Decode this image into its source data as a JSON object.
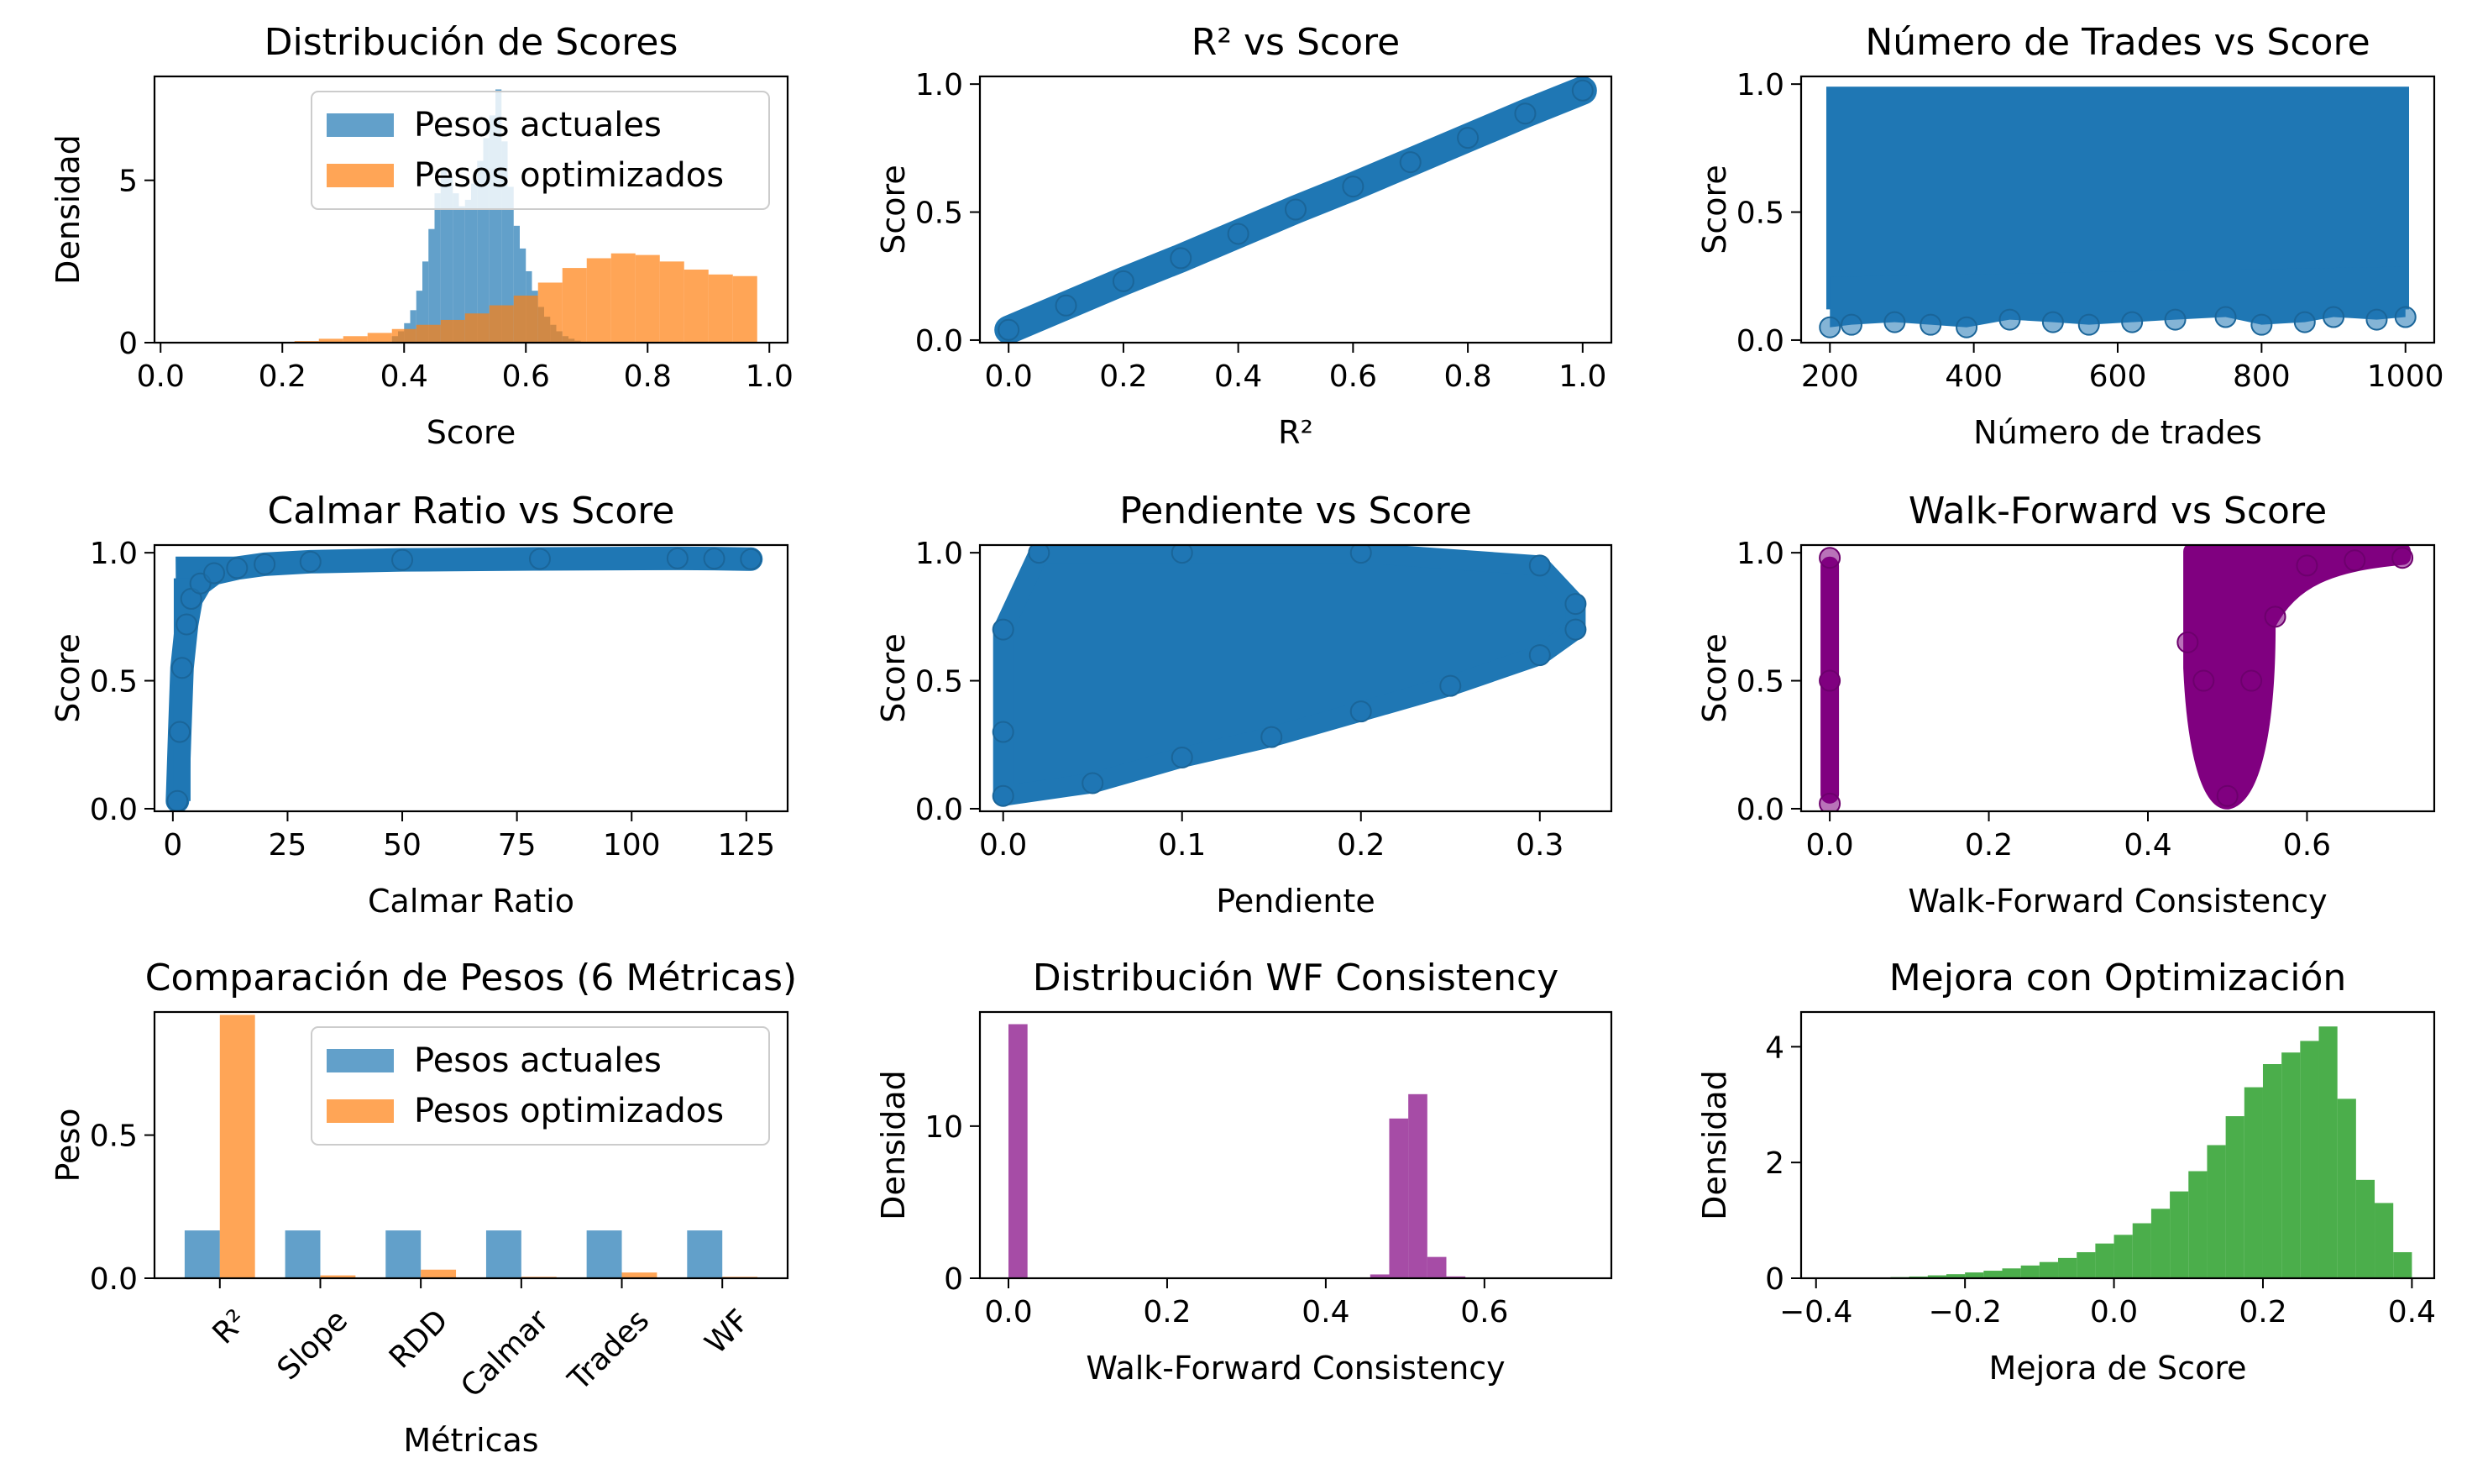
{
  "chart_data": [
    {
      "type": "histogram",
      "title": "Distribución de Scores",
      "xlabel": "Score",
      "ylabel": "Densidad",
      "xlim": [
        -0.01,
        1.03
      ],
      "ylim": [
        0,
        8.2
      ],
      "xticks": [
        0.0,
        0.2,
        0.4,
        0.6,
        0.8,
        1.0
      ],
      "xtick_labels": [
        "0.0",
        "0.2",
        "0.4",
        "0.6",
        "0.8",
        "1.0"
      ],
      "yticks": [
        0,
        5
      ],
      "ytick_labels": [
        "0",
        "5"
      ],
      "legend": "top-right",
      "series": [
        {
          "name": "Pesos actuales",
          "color": "#1f77b4",
          "alpha": 0.7,
          "bin_edges": [
            0.38,
            0.39,
            0.4,
            0.41,
            0.42,
            0.43,
            0.44,
            0.45,
            0.46,
            0.47,
            0.48,
            0.49,
            0.5,
            0.51,
            0.52,
            0.53,
            0.54,
            0.55,
            0.56,
            0.57,
            0.58,
            0.59,
            0.6,
            0.61,
            0.62,
            0.63,
            0.64,
            0.65,
            0.66,
            0.67,
            0.68,
            0.69,
            0.7
          ],
          "values": [
            0.2,
            0.35,
            0.6,
            1.0,
            1.6,
            2.5,
            3.5,
            4.6,
            5.4,
            5.1,
            4.6,
            4.2,
            4.4,
            4.9,
            5.6,
            6.3,
            7.0,
            7.8,
            6.2,
            4.8,
            3.6,
            2.9,
            2.2,
            1.6,
            1.1,
            0.8,
            0.55,
            0.35,
            0.2,
            0.12,
            0.06,
            0.02
          ]
        },
        {
          "name": "Pesos optimizados",
          "color": "#ff7f0e",
          "alpha": 0.7,
          "bin_edges": [
            0.22,
            0.26,
            0.3,
            0.34,
            0.38,
            0.42,
            0.46,
            0.5,
            0.54,
            0.58,
            0.62,
            0.66,
            0.7,
            0.74,
            0.78,
            0.82,
            0.86,
            0.9,
            0.94,
            0.98
          ],
          "values": [
            0.05,
            0.12,
            0.2,
            0.3,
            0.42,
            0.55,
            0.7,
            0.9,
            1.15,
            1.45,
            1.85,
            2.3,
            2.6,
            2.75,
            2.7,
            2.5,
            2.25,
            2.1,
            2.05
          ]
        }
      ]
    },
    {
      "type": "scatter",
      "title": "R² vs Score",
      "xlabel": "R²",
      "ylabel": "Score",
      "xlim": [
        -0.05,
        1.05
      ],
      "ylim": [
        -0.01,
        1.03
      ],
      "xticks": [
        0.0,
        0.2,
        0.4,
        0.6,
        0.8,
        1.0
      ],
      "xtick_labels": [
        "0.0",
        "0.2",
        "0.4",
        "0.6",
        "0.8",
        "1.0"
      ],
      "yticks": [
        0.0,
        0.5,
        1.0
      ],
      "ytick_labels": [
        "0.0",
        "0.5",
        "1.0"
      ],
      "series": [
        {
          "color": "#1f77b4",
          "points": [
            [
              0.0,
              0.04
            ],
            [
              0.1,
              0.135
            ],
            [
              0.2,
              0.23
            ],
            [
              0.3,
              0.32
            ],
            [
              0.4,
              0.415
            ],
            [
              0.5,
              0.51
            ],
            [
              0.6,
              0.6
            ],
            [
              0.7,
              0.695
            ],
            [
              0.8,
              0.79
            ],
            [
              0.9,
              0.885
            ],
            [
              1.0,
              0.975
            ]
          ]
        }
      ]
    },
    {
      "type": "scatter",
      "title": "Número de Trades vs Score",
      "xlabel": "Número de trades",
      "ylabel": "Score",
      "xlim": [
        160,
        1040
      ],
      "ylim": [
        -0.01,
        1.03
      ],
      "xticks": [
        200,
        400,
        600,
        800,
        1000
      ],
      "xtick_labels": [
        "200",
        "400",
        "600",
        "800",
        "1000"
      ],
      "yticks": [
        0.0,
        0.5,
        1.0
      ],
      "ytick_labels": [
        "0.0",
        "0.5",
        "1.0"
      ],
      "series": [
        {
          "color": "#1f77b4",
          "points": [
            [
              200,
              0.05
            ],
            [
              230,
              0.06
            ],
            [
              290,
              0.07
            ],
            [
              340,
              0.06
            ],
            [
              390,
              0.05
            ],
            [
              450,
              0.08
            ],
            [
              510,
              0.07
            ],
            [
              560,
              0.06
            ],
            [
              620,
              0.07
            ],
            [
              680,
              0.08
            ],
            [
              750,
              0.09
            ],
            [
              800,
              0.06
            ],
            [
              860,
              0.07
            ],
            [
              900,
              0.09
            ],
            [
              960,
              0.08
            ],
            [
              1000,
              0.09
            ]
          ]
        }
      ]
    },
    {
      "type": "scatter",
      "title": "Calmar Ratio vs Score",
      "xlabel": "Calmar Ratio",
      "ylabel": "Score",
      "xlim": [
        -4,
        134
      ],
      "ylim": [
        -0.01,
        1.03
      ],
      "xticks": [
        0,
        25,
        50,
        75,
        100,
        125
      ],
      "xtick_labels": [
        "0",
        "25",
        "50",
        "75",
        "100",
        "125"
      ],
      "yticks": [
        0.0,
        0.5,
        1.0
      ],
      "ytick_labels": [
        "0.0",
        "0.5",
        "1.0"
      ],
      "series": [
        {
          "color": "#1f77b4",
          "points": [
            [
              1,
              0.03
            ],
            [
              1.5,
              0.3
            ],
            [
              2,
              0.55
            ],
            [
              3,
              0.72
            ],
            [
              4,
              0.82
            ],
            [
              6,
              0.88
            ],
            [
              9,
              0.92
            ],
            [
              14,
              0.94
            ],
            [
              20,
              0.955
            ],
            [
              30,
              0.965
            ],
            [
              50,
              0.972
            ],
            [
              80,
              0.976
            ],
            [
              110,
              0.978
            ],
            [
              118,
              0.977
            ],
            [
              126,
              0.975
            ]
          ]
        }
      ]
    },
    {
      "type": "scatter",
      "title": "Pendiente vs Score",
      "xlabel": "Pendiente",
      "ylabel": "Score",
      "xlim": [
        -0.013,
        0.34
      ],
      "ylim": [
        -0.01,
        1.03
      ],
      "xticks": [
        0.0,
        0.1,
        0.2,
        0.3
      ],
      "xtick_labels": [
        "0.0",
        "0.1",
        "0.2",
        "0.3"
      ],
      "yticks": [
        0.0,
        0.5,
        1.0
      ],
      "ytick_labels": [
        "0.0",
        "0.5",
        "1.0"
      ],
      "series": [
        {
          "color": "#1f77b4",
          "points": [
            [
              0.0,
              0.05
            ],
            [
              0.05,
              0.1
            ],
            [
              0.1,
              0.2
            ],
            [
              0.15,
              0.28
            ],
            [
              0.2,
              0.38
            ],
            [
              0.25,
              0.48
            ],
            [
              0.3,
              0.6
            ],
            [
              0.32,
              0.7
            ],
            [
              0.32,
              0.8
            ],
            [
              0.3,
              0.95
            ],
            [
              0.2,
              1.0
            ],
            [
              0.1,
              1.0
            ],
            [
              0.02,
              1.0
            ],
            [
              0.0,
              0.7
            ],
            [
              0.0,
              0.3
            ]
          ]
        }
      ]
    },
    {
      "type": "scatter",
      "title": "Walk-Forward vs Score",
      "xlabel": "Walk-Forward Consistency",
      "ylabel": "Score",
      "xlim": [
        -0.036,
        0.76
      ],
      "ylim": [
        -0.01,
        1.03
      ],
      "xticks": [
        0.0,
        0.2,
        0.4,
        0.6
      ],
      "xtick_labels": [
        "0.0",
        "0.2",
        "0.4",
        "0.6"
      ],
      "yticks": [
        0.0,
        0.5,
        1.0
      ],
      "ytick_labels": [
        "0.0",
        "0.5",
        "1.0"
      ],
      "series": [
        {
          "color": "#800080",
          "points": [
            [
              0.0,
              0.02
            ],
            [
              0.0,
              0.5
            ],
            [
              0.0,
              0.98
            ],
            [
              0.45,
              0.65
            ],
            [
              0.47,
              0.5
            ],
            [
              0.5,
              0.05
            ],
            [
              0.53,
              0.5
            ],
            [
              0.56,
              0.75
            ],
            [
              0.6,
              0.95
            ],
            [
              0.66,
              0.97
            ],
            [
              0.72,
              0.98
            ]
          ]
        }
      ]
    },
    {
      "type": "bar",
      "title": "Comparación de Pesos (6 Métricas)",
      "xlabel": "Métricas",
      "ylabel": "Peso",
      "categories": [
        "R²",
        "Slope",
        "RDD",
        "Calmar",
        "Trades",
        "WF"
      ],
      "ylim": [
        0,
        0.93
      ],
      "yticks": [
        0.0,
        0.5
      ],
      "ytick_labels": [
        "0.0",
        "0.5"
      ],
      "legend": "top-right",
      "series": [
        {
          "name": "Pesos actuales",
          "color": "#1f77b4",
          "alpha": 0.7,
          "values": [
            0.167,
            0.167,
            0.167,
            0.167,
            0.167,
            0.167
          ]
        },
        {
          "name": "Pesos optimizados",
          "color": "#ff7f0e",
          "alpha": 0.7,
          "values": [
            0.92,
            0.01,
            0.03,
            0.005,
            0.02,
            0.005
          ]
        }
      ]
    },
    {
      "type": "histogram",
      "title": "Distribución WF Consistency",
      "xlabel": "Walk-Forward Consistency",
      "ylabel": "Densidad",
      "xlim": [
        -0.036,
        0.76
      ],
      "ylim": [
        0,
        17.5
      ],
      "xticks": [
        0.0,
        0.2,
        0.4,
        0.6
      ],
      "xtick_labels": [
        "0.0",
        "0.2",
        "0.4",
        "0.6"
      ],
      "yticks": [
        0,
        10
      ],
      "ytick_labels": [
        "0",
        "10"
      ],
      "series": [
        {
          "color": "#800080",
          "alpha": 0.7,
          "bin_edges": [
            0.0,
            0.024,
            0.048,
            0.072,
            0.096,
            0.12,
            0.144,
            0.168,
            0.192,
            0.216,
            0.24,
            0.264,
            0.288,
            0.312,
            0.336,
            0.36,
            0.384,
            0.408,
            0.432,
            0.456,
            0.48,
            0.504,
            0.528,
            0.552,
            0.576,
            0.6,
            0.624,
            0.648,
            0.672,
            0.696,
            0.72
          ],
          "values": [
            16.7,
            0,
            0,
            0,
            0,
            0,
            0,
            0,
            0,
            0,
            0,
            0,
            0,
            0,
            0,
            0,
            0,
            0,
            0,
            0.25,
            10.5,
            12.1,
            1.4,
            0.12,
            0.03,
            0.01,
            0,
            0,
            0,
            0
          ]
        }
      ]
    },
    {
      "type": "histogram",
      "title": "Mejora con Optimización",
      "xlabel": "Mejora de Score",
      "ylabel": "Densidad",
      "xlim": [
        -0.42,
        0.43
      ],
      "ylim": [
        0,
        4.6
      ],
      "xticks": [
        -0.4,
        -0.2,
        0.0,
        0.2,
        0.4
      ],
      "xtick_labels": [
        "−0.4",
        "−0.2",
        "0.0",
        "0.2",
        "0.4"
      ],
      "yticks": [
        0,
        2,
        4
      ],
      "ytick_labels": [
        "0",
        "2",
        "4"
      ],
      "series": [
        {
          "color": "#2ca02c",
          "alpha": 0.85,
          "bin_edges": [
            -0.35,
            -0.325,
            -0.3,
            -0.275,
            -0.25,
            -0.225,
            -0.2,
            -0.175,
            -0.15,
            -0.125,
            -0.1,
            -0.075,
            -0.05,
            -0.025,
            0.0,
            0.025,
            0.05,
            0.075,
            0.1,
            0.125,
            0.15,
            0.175,
            0.2,
            0.225,
            0.25,
            0.275,
            0.3,
            0.325,
            0.35,
            0.375,
            0.4
          ],
          "values": [
            0.01,
            0.01,
            0.02,
            0.03,
            0.05,
            0.07,
            0.1,
            0.13,
            0.17,
            0.22,
            0.28,
            0.35,
            0.45,
            0.6,
            0.75,
            0.95,
            1.2,
            1.5,
            1.85,
            2.3,
            2.8,
            3.3,
            3.7,
            3.9,
            4.1,
            4.35,
            3.1,
            1.7,
            1.3,
            0.45
          ]
        }
      ]
    }
  ]
}
